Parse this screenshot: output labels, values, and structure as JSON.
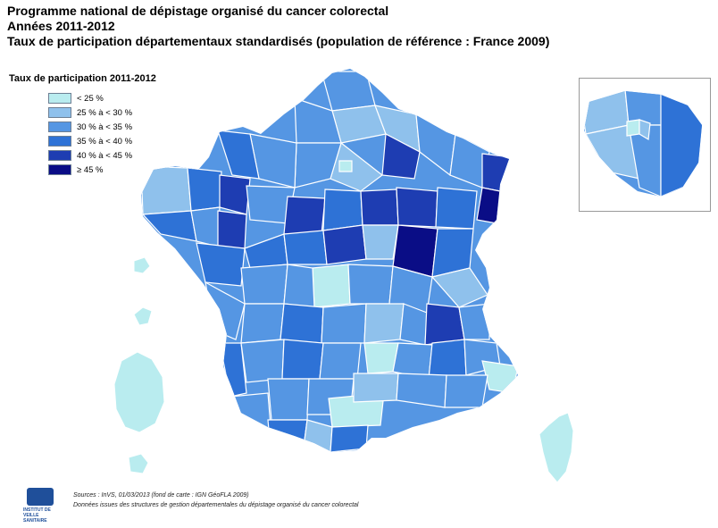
{
  "title": {
    "line1": "Programme national de dépistage organisé du cancer colorectal",
    "line2": "Années 2011-2012",
    "line3": "Taux de participation départementaux standardisés (population de référence : France 2009)"
  },
  "legend": {
    "title": "Taux de participation 2011-2012",
    "items": [
      {
        "label": "< 25 %",
        "color": "#b9ecef"
      },
      {
        "label": "25 % à < 30 %",
        "color": "#8fc1ec"
      },
      {
        "label": "30 % à < 35 %",
        "color": "#5596e3"
      },
      {
        "label": "35 % à < 40 %",
        "color": "#2e72d6"
      },
      {
        "label": "40 % à < 45 %",
        "color": "#1e3db2"
      },
      {
        "label": "≥ 45 %",
        "color": "#0a0d86"
      }
    ]
  },
  "map": {
    "regions_shown": [
      "France métropolitaine",
      "Corse",
      "Île-de-France (encart)",
      "Guadeloupe (DOM)",
      "Martinique (DOM)"
    ],
    "colors": {
      "stroke": "#ffffff",
      "inset_border": "#999999"
    }
  },
  "logo": {
    "text": "INSTITUT DE VEILLE SANITAIRE",
    "icon": "invs-logo-icon"
  },
  "sources": {
    "line1": "Sources : InVS, 01/03/2013 (fond de carte : IGN GéoFLA 2009)",
    "line2": "Données issues des structures de gestion départementales du dépistage organisé du cancer colorectal"
  }
}
